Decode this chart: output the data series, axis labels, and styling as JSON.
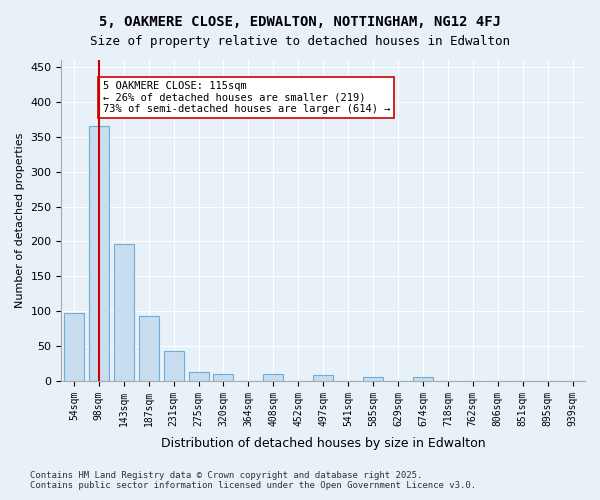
{
  "title_line1": "5, OAKMERE CLOSE, EDWALTON, NOTTINGHAM, NG12 4FJ",
  "title_line2": "Size of property relative to detached houses in Edwalton",
  "xlabel": "Distribution of detached houses by size in Edwalton",
  "ylabel": "Number of detached properties",
  "categories": [
    "54sqm",
    "98sqm",
    "143sqm",
    "187sqm",
    "231sqm",
    "275sqm",
    "320sqm",
    "364sqm",
    "408sqm",
    "452sqm",
    "497sqm",
    "541sqm",
    "585sqm",
    "629sqm",
    "674sqm",
    "718sqm",
    "762sqm",
    "806sqm",
    "851sqm",
    "895sqm",
    "939sqm"
  ],
  "values": [
    98,
    365,
    196,
    93,
    43,
    13,
    10,
    0,
    10,
    0,
    8,
    0,
    5,
    0,
    6,
    0,
    0,
    0,
    0,
    0,
    0
  ],
  "bar_color": "#c9ddf0",
  "bar_edge_color": "#6baed6",
  "vline_x": 1,
  "vline_color": "#cc0000",
  "annotation_text": "5 OAKMERE CLOSE: 115sqm\n← 26% of detached houses are smaller (219)\n73% of semi-detached houses are larger (614) →",
  "annotation_box_color": "#ffffff",
  "annotation_box_edge": "#cc0000",
  "ylim": [
    0,
    460
  ],
  "yticks": [
    0,
    50,
    100,
    150,
    200,
    250,
    300,
    350,
    400,
    450
  ],
  "footer": "Contains HM Land Registry data © Crown copyright and database right 2025.\nContains public sector information licensed under the Open Government Licence v3.0.",
  "bg_color": "#e8f0f8",
  "plot_bg_color": "#e8f0f8"
}
